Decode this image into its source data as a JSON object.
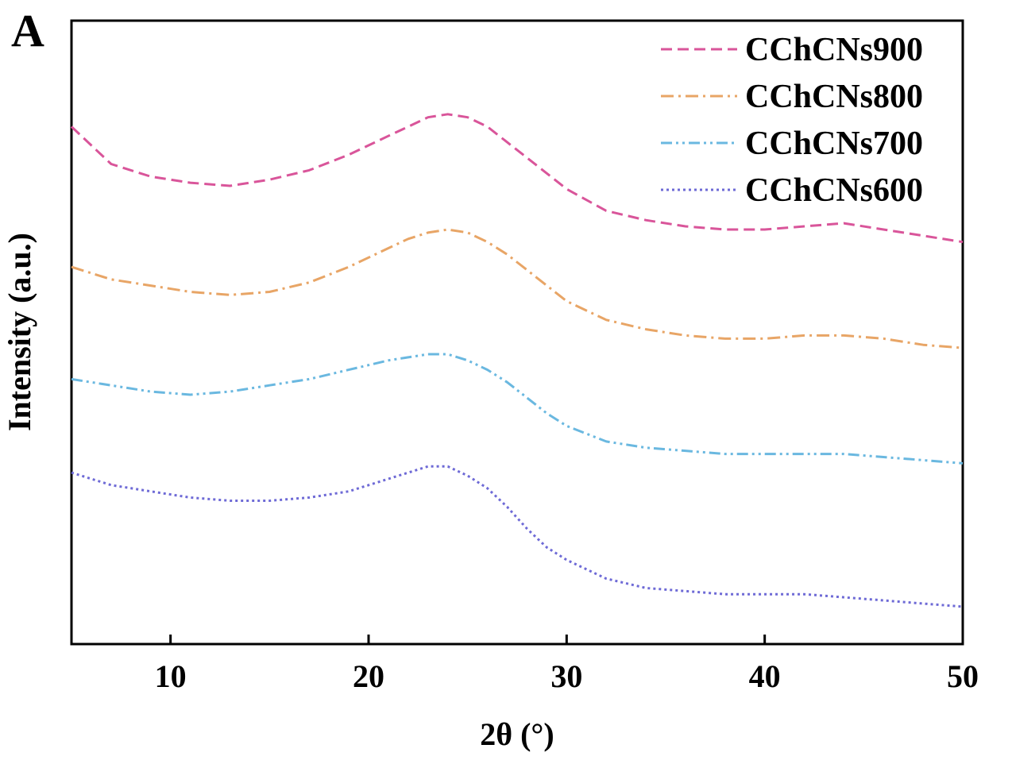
{
  "panel_label": "A",
  "chart_data": {
    "type": "line",
    "xlabel": "2θ (°)",
    "ylabel": "Intensity (a.u.)",
    "xlim": [
      5,
      50
    ],
    "ylim": [
      0,
      100
    ],
    "xticks": [
      10,
      20,
      30,
      40,
      50
    ],
    "yticks": [],
    "grid": false,
    "legend_position": "top-right",
    "series": [
      {
        "name": "CChCNs900",
        "color": "#d9559a",
        "line_style": "dashed",
        "x": [
          5,
          7,
          9,
          11,
          13,
          15,
          17,
          19,
          21,
          22,
          23,
          24,
          25,
          26,
          27,
          28,
          29,
          30,
          32,
          34,
          36,
          38,
          40,
          42,
          44,
          46,
          48,
          50
        ],
        "y": [
          83,
          77,
          75,
          74,
          73.5,
          74.5,
          76,
          78.5,
          81.5,
          83,
          84.5,
          85,
          84.5,
          83,
          80.5,
          78,
          75.5,
          73,
          69.5,
          68,
          67,
          66.5,
          66.5,
          67,
          67.5,
          66.5,
          65.5,
          64.5
        ]
      },
      {
        "name": "CChCNs800",
        "color": "#e8a566",
        "line_style": "dashdot",
        "x": [
          5,
          7,
          9,
          11,
          13,
          15,
          17,
          19,
          21,
          22,
          23,
          24,
          25,
          26,
          27,
          28,
          29,
          30,
          32,
          34,
          36,
          38,
          40,
          42,
          44,
          46,
          48,
          50
        ],
        "y": [
          60.5,
          58.5,
          57.5,
          56.5,
          56,
          56.5,
          58,
          60.5,
          63.5,
          65,
          66,
          66.5,
          66,
          64.5,
          62.5,
          60,
          57.5,
          55,
          52,
          50.5,
          49.5,
          49,
          49,
          49.5,
          49.5,
          49,
          48,
          47.5
        ]
      },
      {
        "name": "CChCNs700",
        "color": "#6ab8e0",
        "line_style": "dashdotdot",
        "x": [
          5,
          7,
          9,
          11,
          13,
          15,
          17,
          19,
          21,
          22,
          23,
          24,
          25,
          26,
          27,
          28,
          29,
          30,
          32,
          34,
          36,
          38,
          40,
          42,
          44,
          46,
          48,
          50
        ],
        "y": [
          42.5,
          41.5,
          40.5,
          40,
          40.5,
          41.5,
          42.5,
          44,
          45.5,
          46,
          46.5,
          46.5,
          45.5,
          44,
          42,
          39.5,
          37,
          35,
          32.5,
          31.5,
          31,
          30.5,
          30.5,
          30.5,
          30.5,
          30,
          29.5,
          29
        ]
      },
      {
        "name": "CChCNs600",
        "color": "#6e6ad6",
        "line_style": "dotted",
        "x": [
          5,
          7,
          9,
          11,
          13,
          15,
          17,
          19,
          21,
          22,
          23,
          24,
          25,
          26,
          27,
          28,
          29,
          30,
          32,
          34,
          36,
          38,
          40,
          42,
          44,
          46,
          48,
          50
        ],
        "y": [
          27.5,
          25.5,
          24.5,
          23.5,
          23,
          23,
          23.5,
          24.5,
          26.5,
          27.5,
          28.5,
          28.5,
          27,
          25,
          22,
          18.5,
          15.5,
          13.5,
          10.5,
          9,
          8.5,
          8,
          8,
          8,
          7.5,
          7,
          6.5,
          6
        ]
      }
    ]
  }
}
